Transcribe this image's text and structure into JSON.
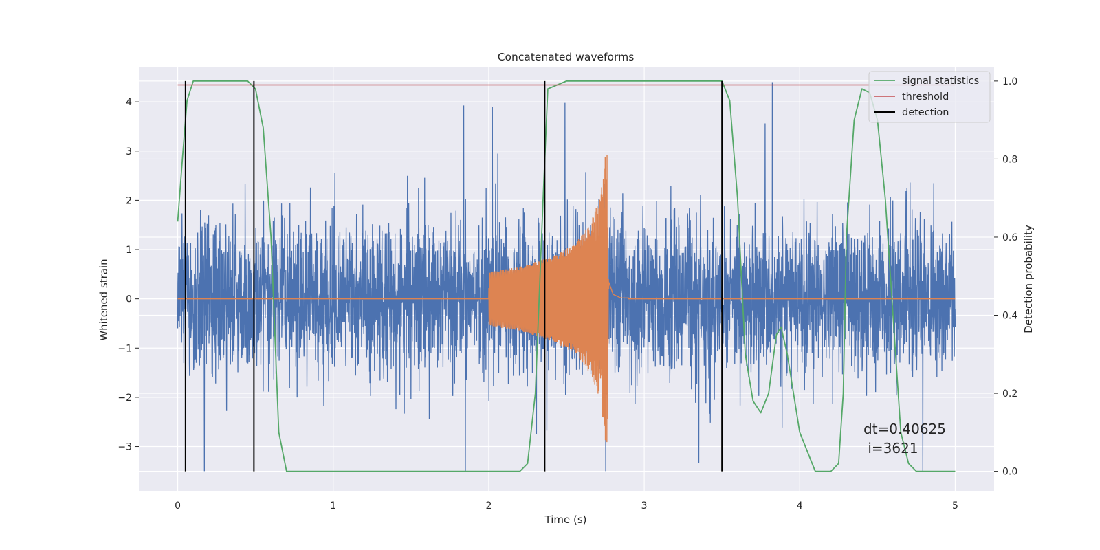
{
  "chart_data": {
    "type": "line",
    "title": "Concatenated waveforms",
    "xlabel": "Time (s)",
    "ylabel_left": "Whitened strain",
    "ylabel_right": "Detection probability",
    "xlim": [
      -0.25,
      5.25
    ],
    "ylim_left": [
      -3.9,
      4.7
    ],
    "ylim_right": [
      -0.05,
      1.035
    ],
    "x_ticks": [
      0,
      1,
      2,
      3,
      4,
      5
    ],
    "y_ticks_left": [
      -3,
      -2,
      -1,
      0,
      1,
      2,
      3,
      4
    ],
    "y_ticks_right": [
      0.0,
      0.2,
      0.4,
      0.6,
      0.8,
      1.0
    ],
    "grid": true,
    "legend_position": "top-right",
    "annotation": [
      "dt=0.40625",
      " i=3621"
    ],
    "colors": {
      "noise": "#4c72b0",
      "waveform": "#dd8452",
      "signal_statistics": "#55a868",
      "threshold": "#c44e52",
      "detection": "#000000",
      "plot_background": "#eaeaf2",
      "grid": "#ffffff"
    },
    "series": [
      {
        "name": "",
        "axis": "left",
        "description_role": "noise",
        "x_range": [
          0,
          5
        ],
        "envelope_typical": [
          -1.5,
          1.5
        ],
        "envelope_extreme": [
          -3.5,
          4.4
        ]
      },
      {
        "name": "",
        "axis": "left",
        "description_role": "waveform",
        "x": [
          0,
          2.0,
          2.0,
          2.2,
          2.4,
          2.55,
          2.65,
          2.72,
          2.76,
          2.77,
          2.8,
          2.85,
          5.0
        ],
        "amplitude": [
          0,
          0,
          0.55,
          0.65,
          0.85,
          1.1,
          1.5,
          2.1,
          3.2,
          0.4,
          0.1,
          0.02,
          0
        ]
      },
      {
        "name": "signal statistics",
        "axis": "right",
        "x": [
          0.0,
          0.03,
          0.06,
          0.1,
          0.45,
          0.5,
          0.55,
          0.6,
          0.65,
          0.7,
          2.2,
          2.25,
          2.3,
          2.35,
          2.38,
          2.5,
          3.5,
          3.55,
          3.6,
          3.65,
          3.7,
          3.75,
          3.8,
          3.85,
          3.88,
          3.92,
          4.0,
          4.1,
          4.2,
          4.25,
          4.28,
          4.3,
          4.35,
          4.4,
          4.45,
          4.5,
          4.55,
          4.6,
          4.65,
          4.7,
          4.75,
          5.0
        ],
        "values": [
          0.64,
          0.8,
          0.95,
          1.0,
          1.0,
          0.98,
          0.88,
          0.6,
          0.1,
          0.0,
          0.0,
          0.02,
          0.2,
          0.7,
          0.98,
          1.0,
          1.0,
          0.95,
          0.7,
          0.3,
          0.18,
          0.15,
          0.2,
          0.35,
          0.37,
          0.3,
          0.1,
          0.0,
          0.0,
          0.02,
          0.2,
          0.6,
          0.9,
          0.98,
          0.97,
          0.9,
          0.7,
          0.4,
          0.1,
          0.02,
          0.0,
          0.0
        ]
      },
      {
        "name": "threshold",
        "axis": "right",
        "x": [
          0,
          5
        ],
        "values": [
          0.99,
          0.99
        ]
      },
      {
        "name": "detection",
        "axis": "right",
        "x": [
          0.05,
          0.49,
          2.36,
          3.5
        ],
        "values": [
          [
            0,
            1
          ],
          [
            0,
            1
          ],
          [
            0,
            1
          ],
          [
            0,
            1
          ]
        ]
      }
    ]
  }
}
